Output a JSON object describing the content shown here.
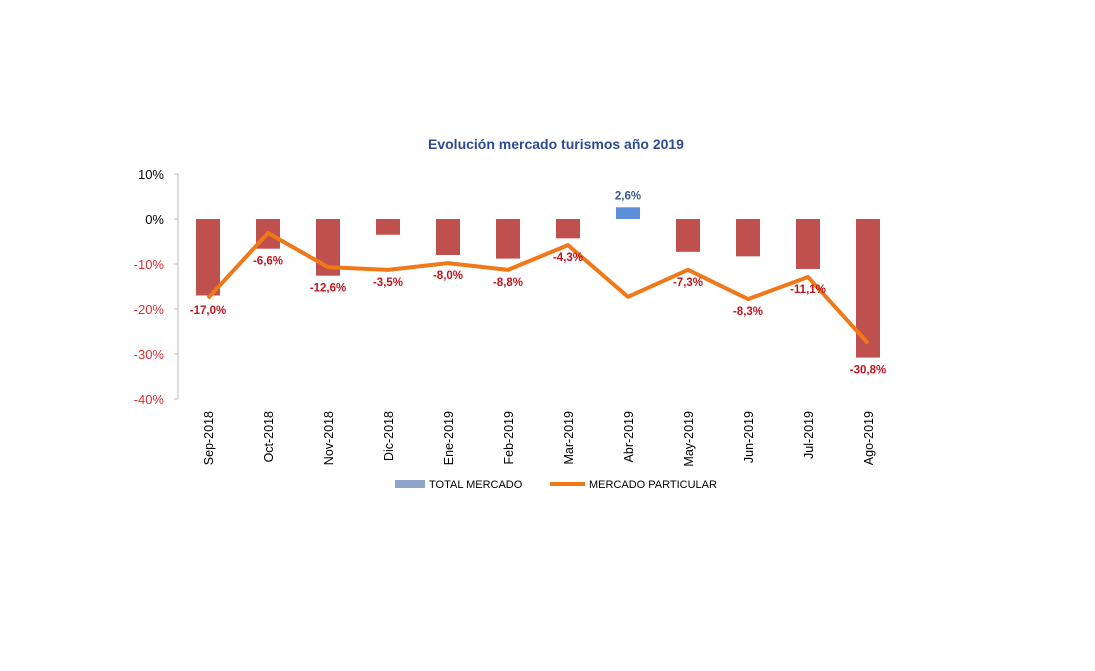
{
  "chart_data": {
    "type": "bar+line",
    "title": "Evolución mercado turismos año 2019",
    "categories": [
      "Sep-2018",
      "Oct-2018",
      "Nov-2018",
      "Dic-2018",
      "Ene-2019",
      "Feb-2019",
      "Mar-2019",
      "Abr-2019",
      "May-2019",
      "Jun-2019",
      "Jul-2019",
      "Ago-2019"
    ],
    "series": [
      {
        "name": "TOTAL MERCADO",
        "type": "bar",
        "values": [
          -17.0,
          -6.6,
          -12.6,
          -3.5,
          -8.0,
          -8.8,
          -4.3,
          2.6,
          -7.3,
          -8.3,
          -11.1,
          -30.8
        ],
        "labels": [
          "-17,0%",
          "-6,6%",
          "-12,6%",
          "-3,5%",
          "-8,0%",
          "-8,8%",
          "-4,3%",
          "2,6%",
          "-7,3%",
          "-8,3%",
          "-11,1%",
          "-30,8%"
        ]
      },
      {
        "name": "MERCADO PARTICULAR",
        "type": "line",
        "values": [
          -17.6,
          -3.1,
          -10.7,
          -11.3,
          -9.8,
          -11.3,
          -5.8,
          -17.3,
          -11.3,
          -17.8,
          -12.9,
          -27.6
        ]
      }
    ],
    "yticks": [
      "10%",
      "0%",
      "-10%",
      "-20%",
      "-30%",
      "-40%"
    ],
    "ylim": [
      -40,
      10
    ],
    "legend_position": "bottom",
    "colors": {
      "negative_bar": "#c0504d",
      "positive_bar": "#5b8fd9",
      "line": "#f07818",
      "title": "#2f4b8f",
      "neg_label": "#c0141c",
      "pos_label": "#3a5a8c"
    }
  }
}
